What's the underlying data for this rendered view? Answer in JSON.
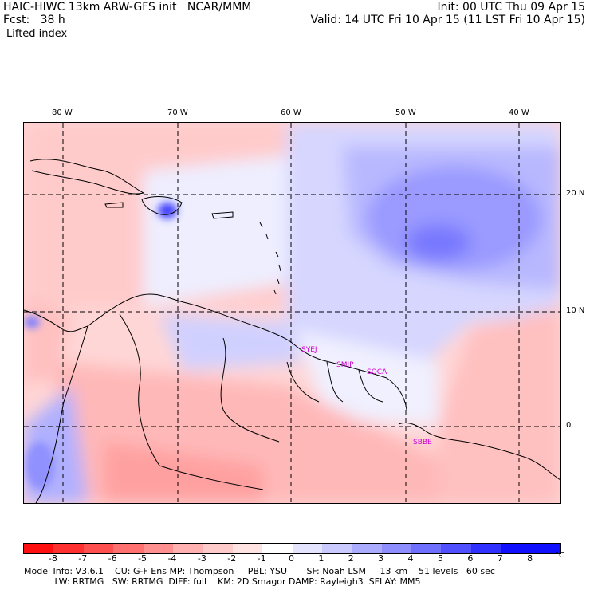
{
  "header": {
    "left_line1": "HAIC-HIWC 13km ARW-GFS init   NCAR/MMM",
    "left_line2": "Fcst:   38 h",
    "right_line1": "Init: 00 UTC Thu 09 Apr 15",
    "right_line2": "Valid: 14 UTC Fri 10 Apr 15 (11 LST Fri 10 Apr 15)",
    "field": "Lifted index"
  },
  "axes": {
    "lon_labels": [
      "80 W",
      "70 W",
      "60 W",
      "50 W",
      "40 W"
    ],
    "lat_labels": [
      "20 N",
      "10 N",
      "0"
    ]
  },
  "stations": [
    "SYEJ",
    "SMJP",
    "SOCA",
    "SBBE"
  ],
  "colorbar": {
    "labels": [
      "-8",
      "-7",
      "-6",
      "-5",
      "-4",
      "-3",
      "-2",
      "-1",
      "0",
      "1",
      "2",
      "3",
      "4",
      "5",
      "6",
      "7",
      "8"
    ],
    "unit": "°C",
    "colors": [
      "#ff1010",
      "#ff3030",
      "#ff5050",
      "#ff7070",
      "#ff9090",
      "#ffb0b0",
      "#ffcaca",
      "#ffe2e2",
      "#ffffff",
      "#e4e4ff",
      "#cacaff",
      "#acacff",
      "#8e8eff",
      "#7070ff",
      "#5050ff",
      "#3030ff",
      "#1010ff"
    ]
  },
  "footer": {
    "line1": "Model Info: V3.6.1    CU: G-F Ens MP: Thompson     PBL: YSU       SF: Noah LSM     13 km    51 levels   60 sec",
    "line2": "           LW: RRTMG   SW: RRTMG  DIFF: full    KM: 2D Smagor DAMP: Rayleigh3  SFLAY: MM5"
  }
}
